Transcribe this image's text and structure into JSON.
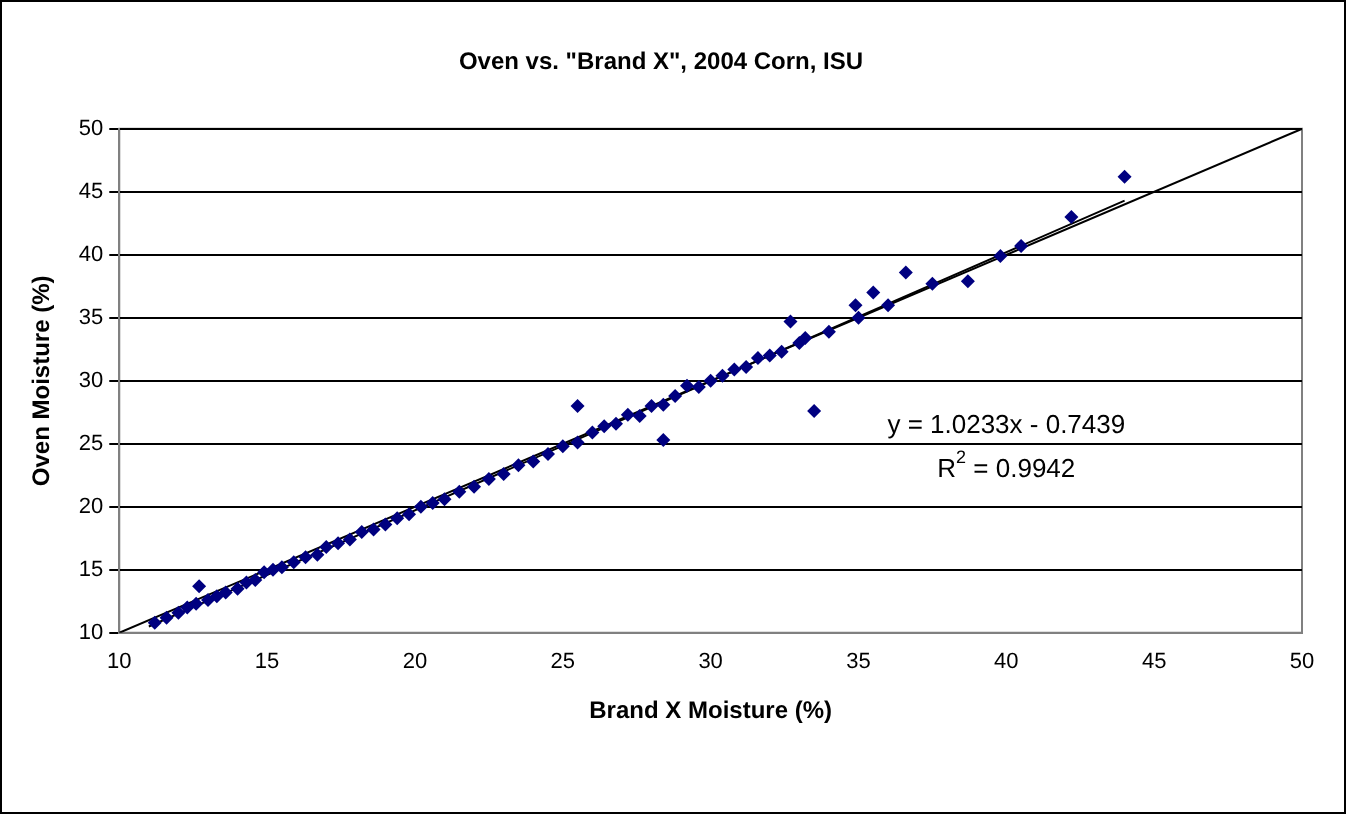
{
  "chart_data": {
    "type": "scatter",
    "title": "Oven vs. \"Brand X\", 2004 Corn, ISU",
    "xlabel": "Brand X Moisture (%)",
    "ylabel": "Oven Moisture (%)",
    "xlim": [
      10,
      50
    ],
    "xticks": [
      10,
      15,
      20,
      25,
      30,
      35,
      40,
      45,
      50
    ],
    "ylim": [
      10,
      50
    ],
    "yticks": [
      10,
      15,
      20,
      25,
      30,
      35,
      40,
      45,
      50
    ],
    "grid": "y",
    "legend": false,
    "marker": "diamond",
    "annotations": [
      "y = 1.0233x - 0.7439",
      "R$^{2}$ = 0.9942"
    ],
    "series": [
      {
        "color": "#000080",
        "x": [
          11.2,
          11.6,
          12.0,
          12.3,
          12.6,
          13.0,
          13.3,
          13.6,
          14.0,
          14.3,
          14.6,
          14.9,
          15.2,
          15.5,
          15.9,
          16.3,
          16.7,
          17.0,
          17.4,
          17.8,
          18.2,
          18.6,
          19.0,
          19.4,
          19.8,
          20.2,
          20.6,
          21.0,
          21.5,
          22.0,
          22.5,
          23.0,
          23.5,
          24.0,
          24.5,
          25.0,
          25.5,
          26.0,
          26.4,
          26.8,
          27.2,
          27.6,
          28.0,
          28.4,
          28.8,
          29.2,
          29.6,
          30.0,
          30.4,
          30.8,
          31.2,
          31.6,
          32.0,
          32.4,
          33.0,
          33.2,
          34.0,
          35.0,
          36.0,
          37.5,
          40.5,
          44.0,
          42.2,
          39.8,
          38.7,
          36.6,
          35.5,
          34.9,
          33.5,
          32.7,
          28.4,
          25.5,
          12.7
        ],
        "values": [
          10.8,
          11.2,
          11.6,
          12.0,
          12.3,
          12.6,
          12.9,
          13.2,
          13.5,
          14.0,
          14.2,
          14.8,
          15.0,
          15.2,
          15.6,
          16.0,
          16.2,
          16.8,
          17.1,
          17.4,
          18.0,
          18.2,
          18.6,
          19.1,
          19.4,
          20.0,
          20.3,
          20.6,
          21.2,
          21.6,
          22.2,
          22.6,
          23.3,
          23.6,
          24.2,
          24.8,
          25.1,
          25.9,
          26.4,
          26.6,
          27.3,
          27.2,
          28.0,
          28.1,
          28.8,
          29.6,
          29.5,
          30.0,
          30.4,
          30.9,
          31.1,
          31.8,
          32.0,
          32.3,
          33.0,
          33.4,
          33.9,
          35.0,
          36.0,
          37.7,
          40.7,
          46.2,
          43.0,
          39.9,
          37.9,
          38.6,
          37.0,
          36.0,
          27.6,
          34.7,
          25.3,
          28.0,
          13.7
        ]
      },
      {
        "type": "line",
        "color": "#000000",
        "marker": "none",
        "x": [
          11,
          44
        ],
        "values": [
          10.5,
          44.3
        ]
      },
      {
        "type": "line",
        "color": "#000000",
        "marker": "none",
        "x": [
          10,
          50
        ],
        "values": [
          10,
          50
        ]
      }
    ]
  }
}
